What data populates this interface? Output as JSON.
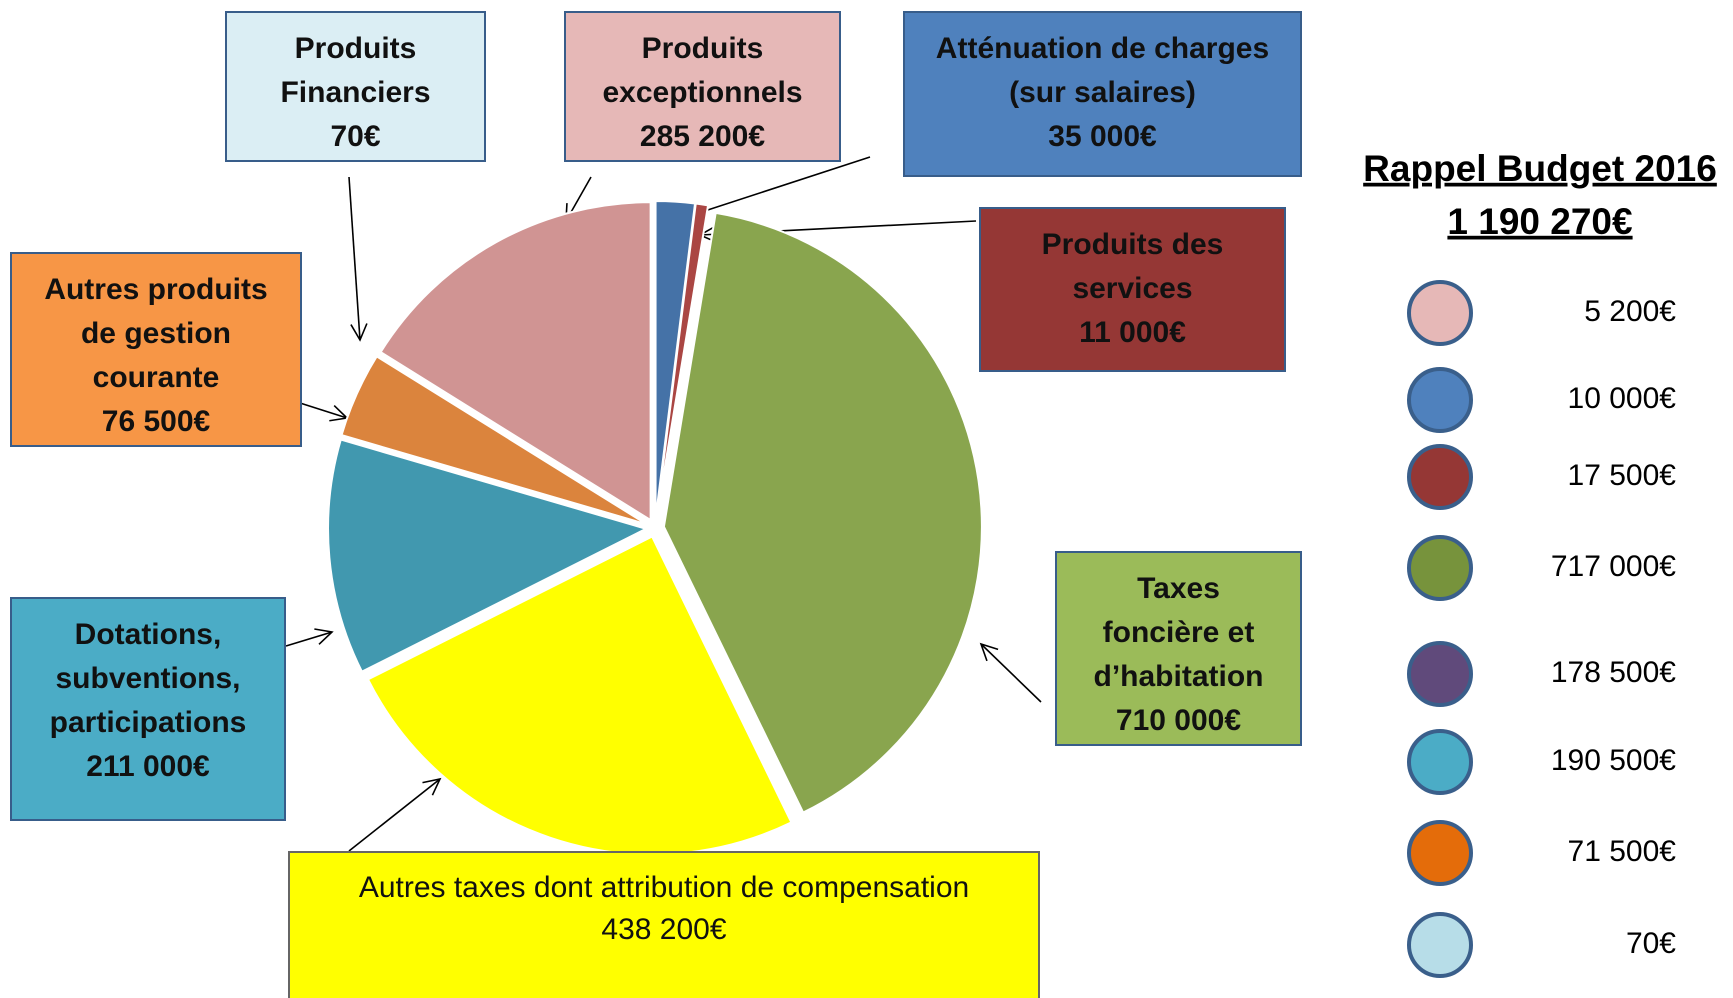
{
  "chart_data": {
    "type": "pie",
    "categories": [
      "Atténuation de charges (sur salaires)",
      "Produits des services",
      "Taxes foncière et d’habitation",
      "Autres taxes dont attribution de compensation",
      "Dotations, subventions, participations",
      "Autres produits de gestion courante",
      "Produits Financiers",
      "Produits exceptionnels"
    ],
    "values": [
      35000,
      11000,
      710000,
      438200,
      211000,
      76500,
      70,
      285200
    ],
    "value_labels": [
      "35 000€",
      "11 000€",
      "710 000€",
      "438 200€",
      "211 000€",
      "76 500€",
      "70€",
      "285 200€"
    ],
    "colors": [
      "#4572a7",
      "#aa4643",
      "#89a54e",
      "#ffff00",
      "#4198af",
      "#db843d",
      "#93a9cf",
      "#d09493"
    ],
    "label_colors": [
      "#4f81bd",
      "#953735",
      "#9bbb59",
      "#ffff00",
      "#4bacc6",
      "#f79646",
      "#dbeef4",
      "#e6b8b7"
    ]
  },
  "legend": {
    "title": "Rappel Budget 2016",
    "total": 1190270,
    "total_label": "1 190 270€",
    "values": [
      5200,
      10000,
      17500,
      717000,
      178500,
      190500,
      71500,
      70
    ],
    "value_labels": [
      "5 200€",
      "10 000€",
      "17 500€",
      "717 000€",
      "178 500€",
      "190 500€",
      "71 500€",
      "70€"
    ],
    "colors": [
      "#e6b8b7",
      "#4f81bd",
      "#953735",
      "#77933c",
      "#604a7b",
      "#4bacc6",
      "#e46c0a",
      "#b7dde8"
    ]
  }
}
